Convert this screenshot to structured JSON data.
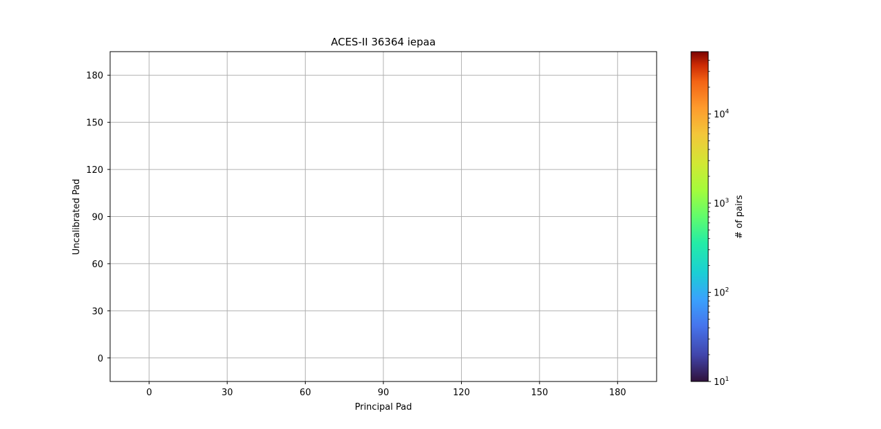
{
  "chart_data": {
    "type": "heatmap",
    "title": "ACES-II 36364 iepaa",
    "xlabel": "Principal Pad",
    "ylabel": "Uncalibrated Pad",
    "xlim": [
      -15,
      195
    ],
    "ylim": [
      -15,
      195
    ],
    "x_ticks": [
      0,
      30,
      60,
      90,
      120,
      150,
      180
    ],
    "y_ticks": [
      0,
      30,
      60,
      90,
      120,
      150,
      180
    ],
    "grid": true,
    "points": [],
    "colorbar": {
      "label": "# of pairs",
      "scale": "log",
      "range": [
        10,
        50000
      ],
      "colormap": "turbo",
      "ticks": [
        {
          "value": 10,
          "base": "10",
          "exp": "1"
        },
        {
          "value": 100,
          "base": "10",
          "exp": "2"
        },
        {
          "value": 1000,
          "base": "10",
          "exp": "3"
        },
        {
          "value": 10000,
          "base": "10",
          "exp": "4"
        }
      ]
    }
  },
  "colors": {
    "grid": "#b0b0b0",
    "axis": "#000000"
  }
}
